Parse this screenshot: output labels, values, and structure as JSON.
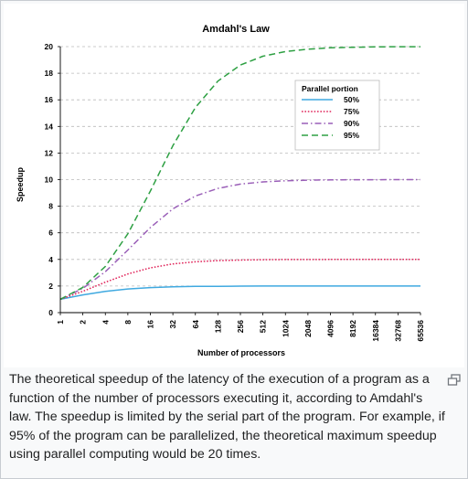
{
  "chart_data": {
    "type": "line",
    "title": "Amdahl's Law",
    "xlabel": "Number of processors",
    "ylabel": "Speedup",
    "x_scale": "log2",
    "categories": [
      "1",
      "2",
      "4",
      "8",
      "16",
      "32",
      "64",
      "128",
      "256",
      "512",
      "1024",
      "2048",
      "4096",
      "8192",
      "16384",
      "32768",
      "65536"
    ],
    "ylim": [
      0,
      20
    ],
    "yticks": [
      "0",
      "2",
      "4",
      "6",
      "8",
      "10",
      "12",
      "14",
      "16",
      "18",
      "20"
    ],
    "grid": "horizontal dashed",
    "legend": {
      "title": "Parallel portion",
      "placement": "inside-top-right"
    },
    "series": [
      {
        "name": "50%",
        "color": "#3fa9e0",
        "dash": "solid",
        "values": [
          1.0,
          1.33,
          1.6,
          1.78,
          1.88,
          1.94,
          1.97,
          1.98,
          1.99,
          2.0,
          2.0,
          2.0,
          2.0,
          2.0,
          2.0,
          2.0,
          2.0
        ]
      },
      {
        "name": "75%",
        "color": "#e0245a",
        "dash": "dotted",
        "values": [
          1.0,
          1.6,
          2.29,
          2.91,
          3.37,
          3.66,
          3.82,
          3.91,
          3.95,
          3.98,
          3.99,
          3.99,
          4.0,
          4.0,
          4.0,
          4.0,
          4.0
        ]
      },
      {
        "name": "90%",
        "color": "#9a5fb8",
        "dash": "dashdot",
        "values": [
          1.0,
          1.82,
          3.08,
          4.71,
          6.4,
          7.8,
          8.77,
          9.34,
          9.66,
          9.83,
          9.91,
          9.96,
          9.98,
          9.99,
          9.99,
          10.0,
          10.0
        ]
      },
      {
        "name": "95%",
        "color": "#2ea043",
        "dash": "dashed",
        "values": [
          1.0,
          1.9,
          3.48,
          5.93,
          9.14,
          12.55,
          15.42,
          17.41,
          18.62,
          19.28,
          19.63,
          19.81,
          19.91,
          19.95,
          19.98,
          19.99,
          19.99
        ]
      }
    ]
  },
  "caption": {
    "text": "The theoretical speedup of the latency of the execution of a program as a function of the number of processors executing it, according to Amdahl's law. The speedup is limited by the serial part of the program. For example, if 95% of the program can be parallelized, the theoretical maximum speedup using parallel computing would be 20 times."
  },
  "enlarge_icon": "enlarge-icon",
  "colors": {
    "grid": "#bbbbbb",
    "axis": "#000000",
    "caption_text": "#202122",
    "frame_border": "#c8ccd1",
    "frame_background": "#f8f9fa"
  }
}
